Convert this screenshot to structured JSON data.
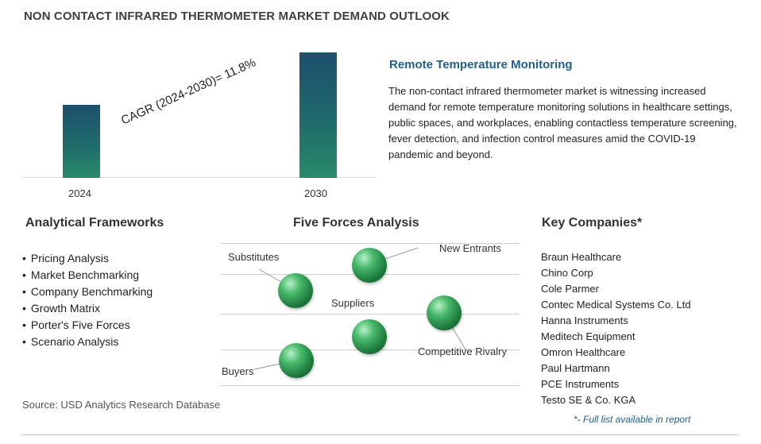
{
  "title": "NON CONTACT INFRARED THERMOMETER MARKET DEMAND OUTLOOK",
  "chart_data": {
    "type": "bar",
    "categories": [
      "2024",
      "2030"
    ],
    "relative_values": [
      0.58,
      1.0
    ],
    "annotation": "CAGR (2024-2030)=  11.8%"
  },
  "highlight": {
    "title": "Remote Temperature Monitoring",
    "body": "The non-contact infrared thermometer market is witnessing increased demand for remote temperature monitoring solutions in healthcare settings, public spaces, and workplaces, enabling contactless temperature screening, fever detection, and infection control measures amid the COVID-19 pandemic and beyond."
  },
  "frameworks": {
    "title": "Analytical Frameworks",
    "items": [
      "Pricing Analysis",
      "Market Benchmarking",
      "Company Benchmarking",
      "Growth Matrix",
      "Porter's Five Forces",
      "Scenario Analysis"
    ]
  },
  "five_forces": {
    "title": "Five Forces Analysis",
    "labels": {
      "substitutes": "Substitutes",
      "new_entrants": "New Entrants",
      "suppliers": "Suppliers",
      "competitive_rivalry": "Competitive Rivalry",
      "buyers": "Buyers"
    }
  },
  "companies": {
    "title": "Key Companies*",
    "items": [
      "Braun Healthcare",
      "Chino Corp",
      "Cole Parmer",
      "Contec Medical Systems Co. Ltd",
      "Hanna Instruments",
      "Meditech Equipment",
      "Omron Healthcare",
      "Paul Hartmann",
      "PCE Instruments",
      "Testo SE & Co. KGA"
    ],
    "note": "*- Full list available in report"
  },
  "source": "Source: USD Analytics Research Database"
}
